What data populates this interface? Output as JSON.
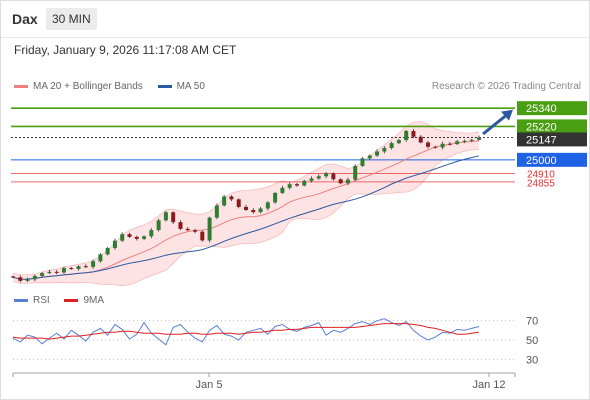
{
  "header": {
    "title": "Dax",
    "timeframe": "30 MIN",
    "timestamp": "Friday, January 9, 2026 11:17:08 AM CET",
    "copyright": "Research © 2026 Trading Central"
  },
  "legend": {
    "ma20_label": "MA 20 + Bollinger Bands",
    "ma20_color": "#f08080",
    "ma50_label": "MA 50",
    "ma50_color": "#2c5aa0"
  },
  "rsi_legend": {
    "rsi_label": "RSI",
    "rsi_color": "#5b7fd6",
    "ma_label": "9MA",
    "ma_color": "#e02020"
  },
  "chart_data": [
    {
      "type": "line",
      "title": "",
      "x_labels": [
        "Jan 5",
        "Jan 12"
      ],
      "ylim": [
        24170,
        25420
      ],
      "close": [
        24227,
        24204,
        24214,
        24236,
        24255,
        24263,
        24259,
        24288,
        24282,
        24300,
        24296,
        24333,
        24378,
        24420,
        24468,
        24511,
        24493,
        24480,
        24497,
        24538,
        24602,
        24655,
        24590,
        24546,
        24537,
        24527,
        24470,
        24620,
        24700,
        24759,
        24740,
        24690,
        24670,
        24656,
        24680,
        24720,
        24782,
        24816,
        24840,
        24831,
        24862,
        24877,
        24892,
        24910,
        24872,
        24846,
        24870,
        24960,
        25010,
        25028,
        25055,
        25078,
        25110,
        25130,
        25190,
        25152,
        25114,
        25086,
        25082,
        25106,
        25104,
        25122,
        25125,
        25132,
        25147
      ],
      "levels": [
        {
          "value": 25340,
          "label": "25340",
          "color": "#4a9e12"
        },
        {
          "value": 25220,
          "label": "25220",
          "color": "#4a9e12"
        },
        {
          "value": 25147,
          "label": "25147",
          "color": "#333333"
        },
        {
          "value": 25000,
          "label": "25000",
          "color": "#1e62e6"
        },
        {
          "value": 24910,
          "label": "24910",
          "color": "#e03030"
        },
        {
          "value": 24855,
          "label": "24855",
          "color": "#e03030"
        }
      ],
      "arrow_color": "#2c5aa0",
      "band_color": "#fde3e3"
    },
    {
      "type": "line",
      "title": "",
      "ylim": [
        20,
        80
      ],
      "yticks": [
        "70",
        "50",
        "30"
      ],
      "series": [
        {
          "name": "RSI",
          "values": [
            52,
            48,
            55,
            53,
            46,
            52,
            57,
            51,
            60,
            55,
            49,
            58,
            62,
            55,
            66,
            61,
            51,
            56,
            68,
            57,
            51,
            45,
            63,
            66,
            58,
            52,
            48,
            60,
            65,
            56,
            54,
            50,
            58,
            60,
            62,
            56,
            64,
            66,
            61,
            59,
            63,
            65,
            68,
            55,
            60,
            58,
            62,
            67,
            69,
            66,
            70,
            72,
            68,
            65,
            69,
            60,
            54,
            50,
            53,
            58,
            57,
            61,
            60,
            62,
            64
          ]
        },
        {
          "name": "9MA",
          "values": [
            53,
            52,
            52,
            52,
            52,
            51,
            52,
            53,
            54,
            54,
            55,
            56,
            57,
            58,
            58,
            59,
            59,
            58,
            57,
            57,
            57,
            56,
            56,
            56,
            57,
            57,
            56,
            56,
            57,
            57,
            57,
            56,
            57,
            58,
            58,
            59,
            60,
            60,
            61,
            61,
            62,
            63,
            63,
            63,
            63,
            63,
            63,
            63,
            64,
            65,
            66,
            67,
            67,
            67,
            67,
            66,
            65,
            63,
            62,
            60,
            58,
            56,
            56,
            57,
            58
          ]
        }
      ]
    }
  ]
}
